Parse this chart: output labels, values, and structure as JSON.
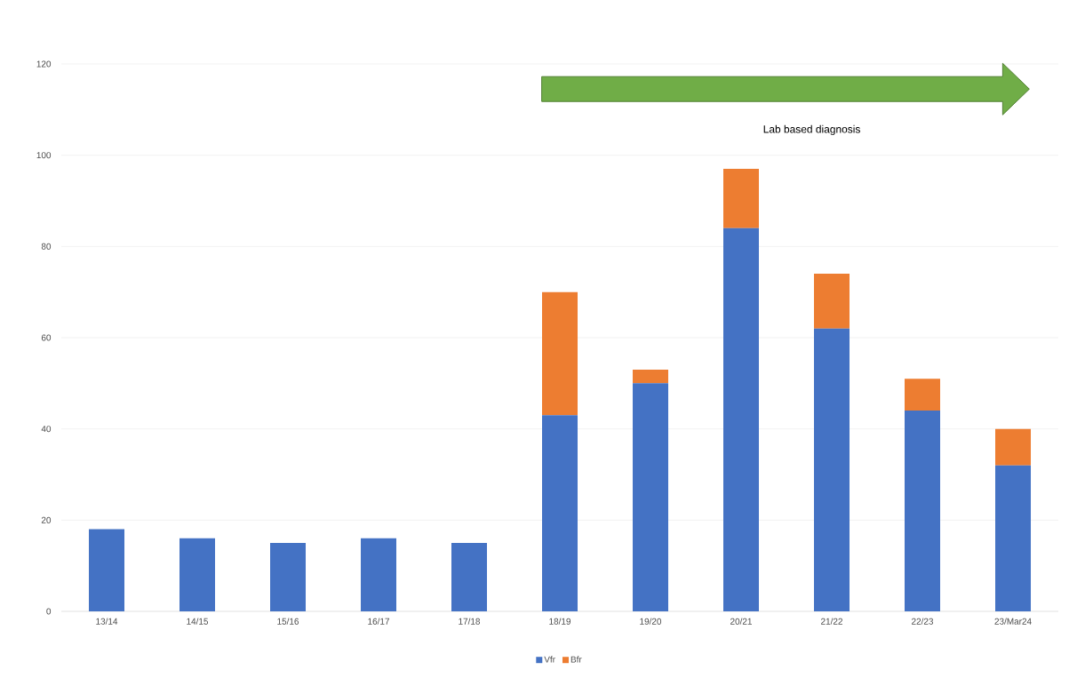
{
  "chart_data": {
    "type": "bar",
    "stacked": true,
    "categories": [
      "13/14",
      "14/15",
      "15/16",
      "16/17",
      "17/18",
      "18/19",
      "19/20",
      "20/21",
      "21/22",
      "22/23",
      "23/Mar24"
    ],
    "series": [
      {
        "name": "Vfr",
        "color": "#4472c4",
        "values": [
          18,
          16,
          15,
          16,
          15,
          43,
          50,
          84,
          62,
          44,
          32
        ]
      },
      {
        "name": "Bfr",
        "color": "#ed7d31",
        "values": [
          0,
          0,
          0,
          0,
          0,
          27,
          3,
          13,
          12,
          7,
          8
        ]
      }
    ],
    "ylim": [
      0,
      120
    ],
    "yticks": [
      0,
      20,
      40,
      60,
      80,
      100,
      120
    ],
    "grid": "y",
    "legend": "bottom",
    "annotations": [
      "Lab based diagnosis"
    ]
  }
}
